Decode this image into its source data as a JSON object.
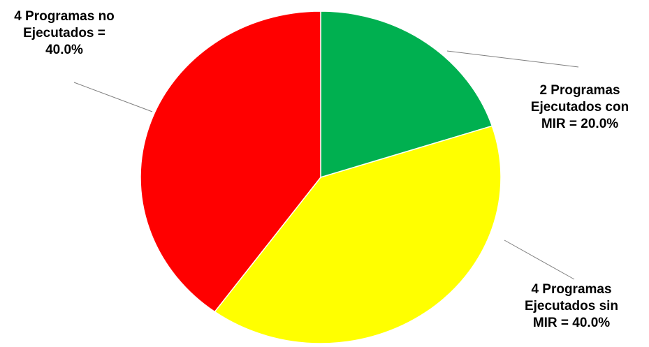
{
  "chart_data": {
    "type": "pie",
    "slices": [
      {
        "value": 20.0,
        "color": "#00B050",
        "label_lines": [
          "2 Programas",
          "Ejecutados con",
          "MIR = 20.0%"
        ]
      },
      {
        "value": 40.0,
        "color": "#FFFF00",
        "label_lines": [
          "4 Programas",
          "Ejecutados sin",
          "MIR = 40.0%"
        ]
      },
      {
        "value": 40.0,
        "color": "#FF0000",
        "label_lines": [
          "4 Programas no",
          "Ejecutados =",
          "40.0%"
        ]
      }
    ],
    "start_angle_deg": 0,
    "direction": "clockwise",
    "legend": "none"
  }
}
